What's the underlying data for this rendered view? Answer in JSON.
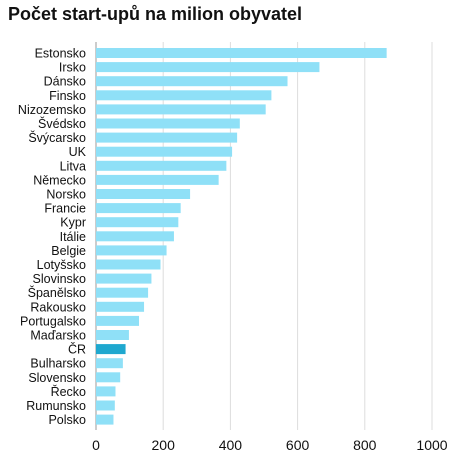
{
  "chart_data": {
    "type": "bar",
    "orientation": "horizontal",
    "title": "Počet start-upů na milion obyvatel",
    "xlabel": "",
    "ylabel": "",
    "xlim": [
      0,
      1000
    ],
    "xticks": [
      0,
      200,
      400,
      600,
      800,
      1000
    ],
    "grid": true,
    "bar_color": "#8fe0f7",
    "highlight_color": "#1fa8cf",
    "highlight_category": "ČR",
    "categories": [
      "Estonsko",
      "Irsko",
      "Dánsko",
      "Finsko",
      "Nizozemsko",
      "Švédsko",
      "Švýcarsko",
      "UK",
      "Litva",
      "Německo",
      "Norsko",
      "Francie",
      "Kypr",
      "Itálie",
      "Belgie",
      "Lotyšsko",
      "Slovinsko",
      "Španělsko",
      "Rakousko",
      "Portugalsko",
      "Maďarsko",
      "ČR",
      "Bulharsko",
      "Slovensko",
      "Řecko",
      "Rumunsko",
      "Polsko"
    ],
    "values": [
      865,
      665,
      570,
      522,
      505,
      428,
      420,
      405,
      388,
      365,
      280,
      252,
      245,
      232,
      210,
      192,
      165,
      155,
      143,
      128,
      98,
      88,
      80,
      72,
      58,
      56,
      52
    ]
  }
}
